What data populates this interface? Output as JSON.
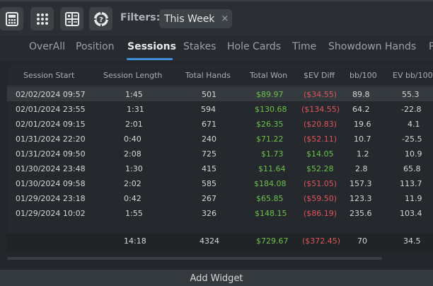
{
  "toolbar": {
    "icons": [
      "calculator-icon",
      "grid-icon",
      "widget-layout-icon",
      "help-chip-icon"
    ],
    "filters_label": "Filters:",
    "filter_chip": {
      "label": "This Week",
      "remove": "×"
    }
  },
  "tabs": [
    {
      "label": "OverAll",
      "active": false
    },
    {
      "label": "Position",
      "active": false
    },
    {
      "label": "Sessions",
      "active": true
    },
    {
      "label": "Stakes",
      "active": false
    },
    {
      "label": "Hole Cards",
      "active": false
    },
    {
      "label": "Time",
      "active": false
    },
    {
      "label": "Showdown Hands",
      "active": false
    },
    {
      "label": "P",
      "active": false
    }
  ],
  "table": {
    "columns": [
      "Session Start",
      "Session Length",
      "Total Hands",
      "Total Won",
      "$EV Diff",
      "bb/100",
      "EV bb/100"
    ],
    "rows": [
      [
        "02/02/2024 09:57",
        "1:45",
        "501",
        "$89.97",
        "($34.55)",
        "89.8",
        "55.3"
      ],
      [
        "02/01/2024 23:55",
        "1:31",
        "594",
        "$130.68",
        "($134.55)",
        "64.2",
        "-22.8"
      ],
      [
        "02/01/2024 09:15",
        "2:01",
        "671",
        "$26.35",
        "($20.83)",
        "19.6",
        "4.1"
      ],
      [
        "01/31/2024 22:20",
        "0:40",
        "240",
        "$71.22",
        "($52.11)",
        "10.7",
        "-25.5"
      ],
      [
        "01/31/2024 09:50",
        "2:08",
        "725",
        "$1.73",
        "$14.05",
        "1.2",
        "10.9"
      ],
      [
        "01/30/2024 23:48",
        "1:30",
        "415",
        "$11.64",
        "$52.28",
        "2.8",
        "65.8"
      ],
      [
        "01/30/2024 09:58",
        "2:02",
        "585",
        "$184.08",
        "($51.05)",
        "157.3",
        "113.7"
      ],
      [
        "01/29/2024 23:18",
        "0:42",
        "267",
        "$65.85",
        "($59.50)",
        "123.3",
        "11.9"
      ],
      [
        "01/29/2024 10:02",
        "1:55",
        "326",
        "$148.15",
        "($86.19)",
        "235.6",
        "103.4"
      ]
    ],
    "selected_row": 0,
    "totals": [
      "",
      "14:18",
      "4324",
      "$729.67",
      "($372.45)",
      "70",
      "34.5"
    ]
  },
  "footer": {
    "add_widget": "Add Widget"
  },
  "colors": {
    "positive": "#6cc04a",
    "negative": "#e0545b",
    "accent": "#3d8fd8"
  }
}
